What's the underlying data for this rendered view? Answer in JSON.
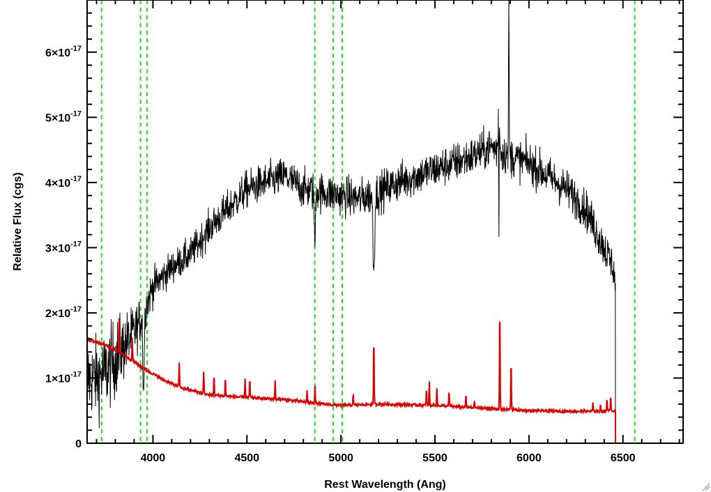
{
  "chart_data": {
    "type": "line",
    "xlabel": "Rest Wavelength (Ang)",
    "ylabel": "Relative Flux (cgs)",
    "xlim": [
      3650,
      6820
    ],
    "ylim": [
      0,
      6.8e-17
    ],
    "x_ticks": [
      {
        "value": 4000,
        "label": "4000"
      },
      {
        "value": 4500,
        "label": "4500"
      },
      {
        "value": 5000,
        "label": "5000"
      },
      {
        "value": 5500,
        "label": "5500"
      },
      {
        "value": 6000,
        "label": "6000"
      },
      {
        "value": 6500,
        "label": "6500"
      }
    ],
    "y_ticks": [
      {
        "value": 0,
        "mantissa": "0",
        "exponent": ""
      },
      {
        "value": 1e-17,
        "mantissa": "1×10",
        "exponent": "-17"
      },
      {
        "value": 2e-17,
        "mantissa": "2×10",
        "exponent": "-17"
      },
      {
        "value": 3e-17,
        "mantissa": "3×10",
        "exponent": "-17"
      },
      {
        "value": 4e-17,
        "mantissa": "4×10",
        "exponent": "-17"
      },
      {
        "value": 5e-17,
        "mantissa": "5×10",
        "exponent": "-17"
      },
      {
        "value": 6e-17,
        "mantissa": "6×10",
        "exponent": "-17"
      }
    ],
    "grid": false,
    "legend": "none",
    "vertical_lines": [
      3727,
      3934,
      3969,
      4861,
      4959,
      5007,
      6563
    ],
    "series": [
      {
        "role": "observed-spectrum",
        "color": "#000000",
        "envelope": {
          "x": [
            3650,
            3700,
            3750,
            3800,
            3850,
            3900,
            3950,
            4000,
            4100,
            4200,
            4300,
            4400,
            4500,
            4600,
            4700,
            4800,
            4900,
            5000,
            5100,
            5200,
            5300,
            5400,
            5500,
            5600,
            5700,
            5800,
            5900,
            6000,
            6100,
            6200,
            6300,
            6400,
            6450,
            6460
          ],
          "y": [
            1e-17,
            1e-17,
            1.1e-17,
            1.3e-17,
            1.5e-17,
            1.7e-17,
            2e-17,
            2.4e-17,
            2.7e-17,
            2.9e-17,
            3.3e-17,
            3.6e-17,
            3.9e-17,
            4e-17,
            4.1e-17,
            3.9e-17,
            3.85e-17,
            3.8e-17,
            3.75e-17,
            3.85e-17,
            4e-17,
            4.1e-17,
            4.2e-17,
            4.3e-17,
            4.4e-17,
            4.55e-17,
            4.4e-17,
            4.3e-17,
            4.1e-17,
            3.9e-17,
            3.6e-17,
            3e-17,
            2.7e-17,
            2.4e-17
          ]
        },
        "noise": {
          "x": [
            3650,
            3800,
            3950,
            4100,
            4500,
            5000,
            6000,
            6400
          ],
          "sigma": [
            6e-18,
            6e-18,
            3e-18,
            2.4e-18,
            2.8e-18,
            3e-18,
            3e-18,
            3e-18
          ]
        },
        "features": [
          {
            "x": 3950,
            "depth": 1.2e-17,
            "width": 5
          },
          {
            "x": 4861,
            "depth": 9e-18,
            "width": 4
          },
          {
            "x": 5175,
            "depth": 1.2e-17,
            "width": 6
          },
          {
            "x": 5893,
            "depth": -2.7e-17,
            "width": 2
          },
          {
            "x": 5840,
            "depth": -1e-17,
            "width": 4
          },
          {
            "x": 5840,
            "depth": 2.5e-17,
            "width": 1.5
          }
        ],
        "cutoff_x": 6460
      },
      {
        "role": "model-spectrum",
        "color": "#dd0000",
        "continuum": {
          "x": [
            3650,
            3750,
            3850,
            3950,
            4050,
            4150,
            4300,
            4500,
            4700,
            4900,
            5000,
            5200,
            5500,
            5800,
            6000,
            6200,
            6400,
            6455
          ],
          "y": [
            1.6e-17,
            1.5e-17,
            1.35e-17,
            1.15e-17,
            9.8e-18,
            8.5e-18,
            7.4e-18,
            7e-18,
            6.7e-18,
            6e-18,
            5.8e-18,
            6e-18,
            5.8e-18,
            5.3e-18,
            5e-18,
            4.9e-18,
            4.9e-18,
            5e-18
          ]
        },
        "lines": [
          {
            "x": 3820,
            "peak": 1.9e-17
          },
          {
            "x": 3890,
            "peak": 1.6e-17
          },
          {
            "x": 4140,
            "peak": 1.25e-17
          },
          {
            "x": 4270,
            "peak": 1.1e-17
          },
          {
            "x": 4325,
            "peak": 1.05e-17
          },
          {
            "x": 4385,
            "peak": 1e-17
          },
          {
            "x": 4490,
            "peak": 1e-17
          },
          {
            "x": 4515,
            "peak": 1e-17
          },
          {
            "x": 4650,
            "peak": 9.5e-18
          },
          {
            "x": 4820,
            "peak": 8e-18
          },
          {
            "x": 4862,
            "peak": 9e-18
          },
          {
            "x": 5065,
            "peak": 7.5e-18
          },
          {
            "x": 5175,
            "peak": 1.65e-17
          },
          {
            "x": 5455,
            "peak": 8.5e-18
          },
          {
            "x": 5470,
            "peak": 9.5e-18
          },
          {
            "x": 5510,
            "peak": 8.5e-18
          },
          {
            "x": 5575,
            "peak": 8e-18
          },
          {
            "x": 5665,
            "peak": 7.5e-18
          },
          {
            "x": 5710,
            "peak": 6.5e-18
          },
          {
            "x": 5845,
            "peak": 2.15e-17
          },
          {
            "x": 5905,
            "peak": 1.3e-17
          },
          {
            "x": 6340,
            "peak": 6.2e-18
          },
          {
            "x": 6380,
            "peak": 6e-18
          },
          {
            "x": 6415,
            "peak": 7e-18
          },
          {
            "x": 6435,
            "peak": 7.5e-18
          }
        ],
        "cutoff_x": 6460
      }
    ]
  }
}
